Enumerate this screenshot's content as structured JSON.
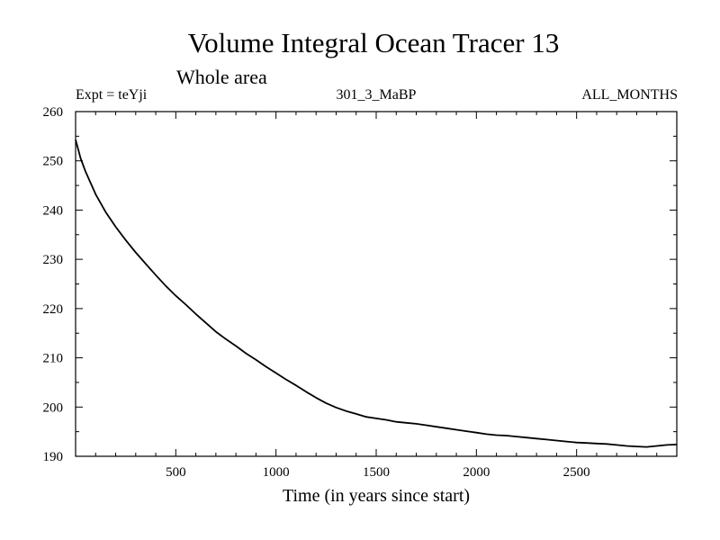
{
  "chart_data": {
    "type": "line",
    "title": "Volume Integral Ocean Tracer 13",
    "subtitle": "Whole area",
    "annotations": {
      "left": "Expt = teYji",
      "center": "301_3_MaBP",
      "right": "ALL_MONTHS"
    },
    "xlabel": "Time (in years since start)",
    "ylabel": "",
    "xlim": [
      0,
      3000
    ],
    "ylim": [
      190,
      260
    ],
    "x_ticks": [
      500,
      1000,
      1500,
      2000,
      2500
    ],
    "y_ticks": [
      190,
      200,
      210,
      220,
      230,
      240,
      250,
      260
    ],
    "grid": false,
    "series": [
      {
        "name": "Volume Integral Ocean Tracer 13",
        "color": "#000000",
        "x": [
          0,
          25,
          50,
          100,
          150,
          200,
          250,
          300,
          350,
          400,
          450,
          500,
          550,
          600,
          650,
          700,
          750,
          800,
          850,
          900,
          950,
          1000,
          1050,
          1100,
          1150,
          1200,
          1250,
          1300,
          1350,
          1400,
          1450,
          1500,
          1550,
          1600,
          1650,
          1700,
          1750,
          1800,
          1850,
          1900,
          1950,
          2000,
          2050,
          2100,
          2150,
          2200,
          2250,
          2300,
          2350,
          2400,
          2450,
          2500,
          2550,
          2600,
          2650,
          2700,
          2750,
          2800,
          2850,
          2900,
          2950,
          3000
        ],
        "values": [
          254.3,
          250.5,
          247.8,
          243.2,
          239.6,
          236.6,
          233.9,
          231.4,
          229.1,
          226.8,
          224.6,
          222.6,
          220.8,
          218.9,
          217.1,
          215.3,
          213.8,
          212.4,
          210.9,
          209.6,
          208.2,
          206.9,
          205.6,
          204.4,
          203.1,
          201.9,
          200.8,
          199.9,
          199.2,
          198.6,
          198.0,
          197.7,
          197.4,
          197.0,
          196.8,
          196.6,
          196.3,
          196.0,
          195.7,
          195.4,
          195.1,
          194.8,
          194.5,
          194.3,
          194.2,
          194.0,
          193.8,
          193.6,
          193.4,
          193.2,
          193.0,
          192.8,
          192.7,
          192.6,
          192.5,
          192.3,
          192.1,
          192.0,
          191.9,
          192.1,
          192.3,
          192.4
        ]
      }
    ]
  }
}
